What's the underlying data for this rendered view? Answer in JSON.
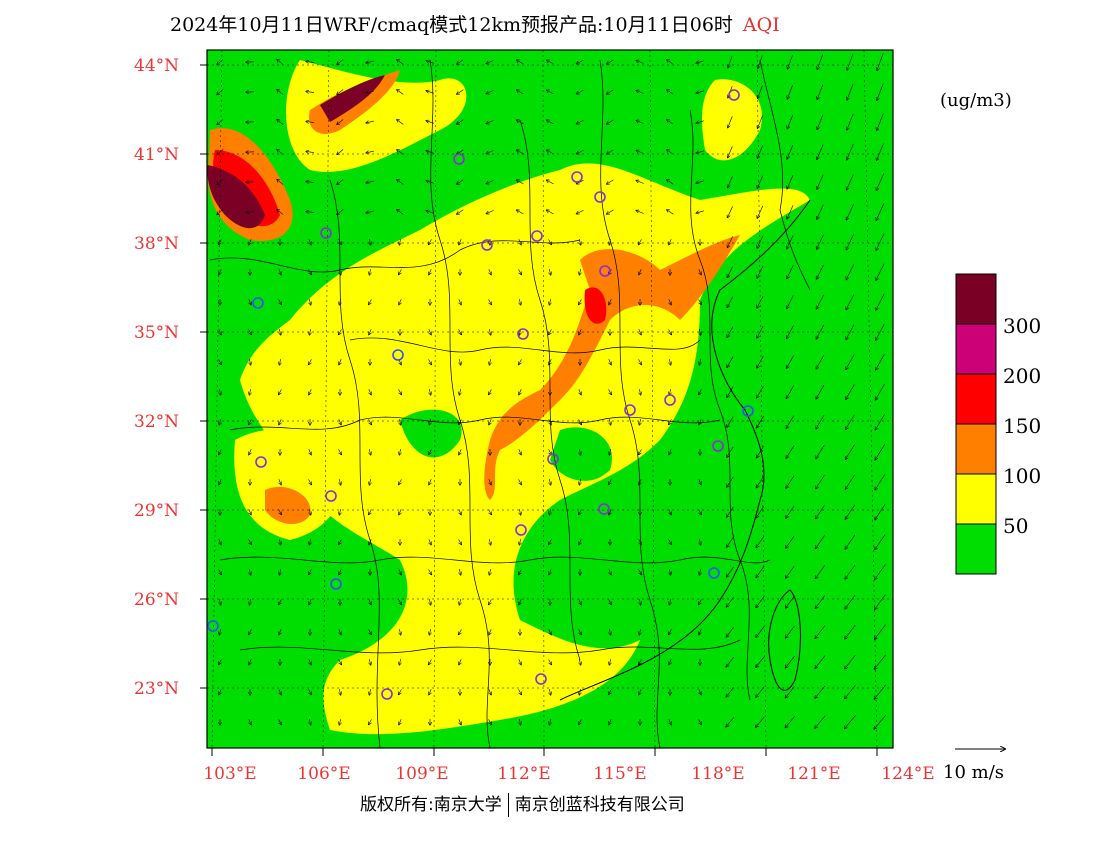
{
  "title": {
    "main": "2024年10月11日WRF/cmaq模式12km预报产品:10月11日06时",
    "variable": "AQI"
  },
  "unit": "(ug/m3)",
  "legend": {
    "bins": [
      {
        "label": "50",
        "color": "#00dd00"
      },
      {
        "label": "100",
        "color": "#ffff00"
      },
      {
        "label": "150",
        "color": "#ff7f00"
      },
      {
        "label": "200",
        "color": "#ff0000"
      },
      {
        "label": "300",
        "color": "#cc0077"
      },
      {
        "label": "",
        "color": "#7a0025"
      }
    ]
  },
  "wind_reference": "10 m/s",
  "latitude_labels": [
    "44°N",
    "41°N",
    "38°N",
    "35°N",
    "32°N",
    "29°N",
    "26°N",
    "23°N"
  ],
  "longitude_labels": [
    "103°E",
    "106°E",
    "109°E",
    "112°E",
    "115°E",
    "118°E",
    "121°E",
    "124°E"
  ],
  "copyright": {
    "left": "版权所有:南京大学",
    "right": "南京创蓝科技有限公司"
  }
}
